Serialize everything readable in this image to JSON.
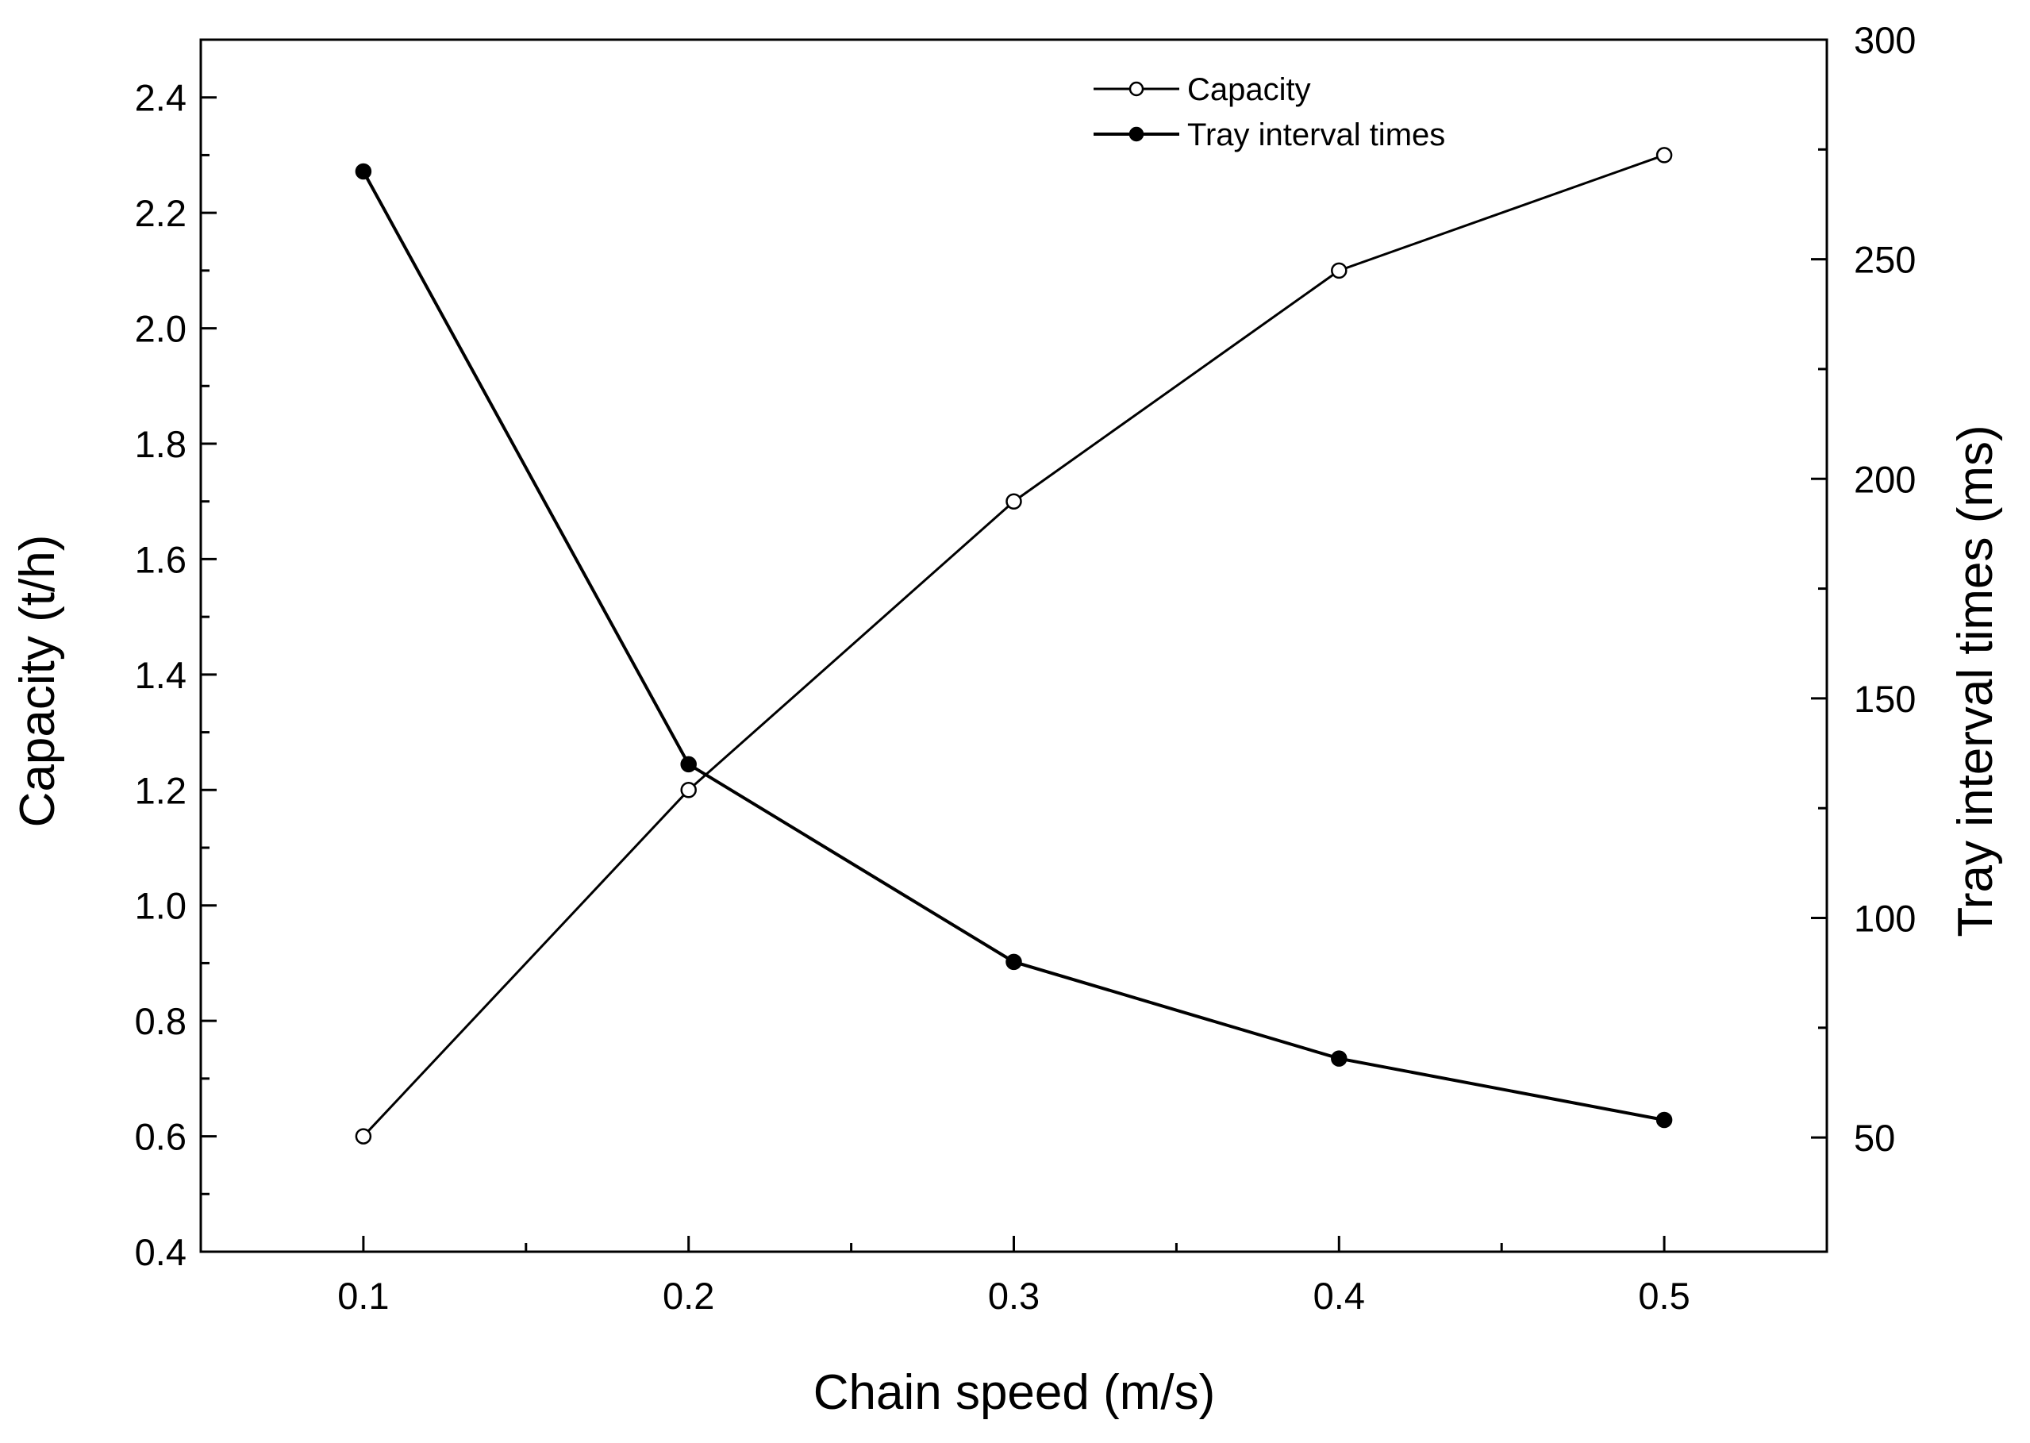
{
  "chart_data": {
    "type": "line",
    "x": [
      0.1,
      0.2,
      0.3,
      0.4,
      0.5
    ],
    "x_tick_labels": [
      "0.1",
      "0.2",
      "0.3",
      "0.4",
      "0.5"
    ],
    "xlabel": "Chain speed (m/s)",
    "xlim": [
      0.05,
      0.55
    ],
    "ylabel_left": "Capacity (t/h)",
    "ylim_left": [
      0.4,
      2.5
    ],
    "y_ticks_left": [
      "0.4",
      "0.6",
      "0.8",
      "1.0",
      "1.2",
      "1.4",
      "1.6",
      "1.8",
      "2.0",
      "2.2",
      "2.4"
    ],
    "ylabel_right": "Tray interval times (ms)",
    "ylim_right": [
      24,
      300
    ],
    "y_ticks_right": [
      "50",
      "100",
      "150",
      "200",
      "250",
      "300"
    ],
    "series": [
      {
        "name": "Capacity",
        "axis": "left",
        "marker": "open-circle",
        "values": [
          0.6,
          1.2,
          1.7,
          2.1,
          2.3
        ]
      },
      {
        "name": "Tray interval times",
        "axis": "right",
        "marker": "filled-circle",
        "values": [
          270,
          135,
          90,
          68,
          54
        ]
      }
    ],
    "legend_position": "top-right",
    "grid": false
  }
}
